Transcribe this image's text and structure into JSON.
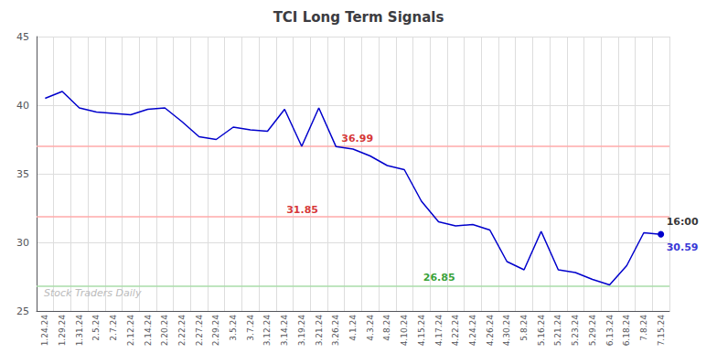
{
  "chart_data": {
    "type": "line",
    "title": "TCI Long Term Signals",
    "categories": [
      "1.24.24",
      "1.29.24",
      "1.31.24",
      "2.5.24",
      "2.7.24",
      "2.12.24",
      "2.14.24",
      "2.20.24",
      "2.22.24",
      "2.27.24",
      "2.29.24",
      "3.5.24",
      "3.7.24",
      "3.12.24",
      "3.14.24",
      "3.19.24",
      "3.21.24",
      "3.26.24",
      "4.1.24",
      "4.3.24",
      "4.8.24",
      "4.10.24",
      "4.15.24",
      "4.17.24",
      "4.22.24",
      "4.24.24",
      "4.26.24",
      "4.30.24",
      "5.8.24",
      "5.16.24",
      "5.21.24",
      "5.23.24",
      "5.29.24",
      "6.13.24",
      "6.18.24",
      "7.8.24",
      "7.15.24"
    ],
    "values": [
      40.5,
      41.0,
      39.8,
      39.5,
      39.4,
      39.3,
      39.7,
      39.8,
      38.8,
      37.7,
      37.5,
      38.4,
      38.2,
      38.1,
      39.7,
      37.0,
      39.8,
      36.99,
      36.8,
      36.3,
      35.6,
      35.3,
      33.0,
      31.5,
      31.2,
      31.3,
      30.9,
      28.6,
      28.0,
      30.8,
      28.0,
      27.8,
      27.3,
      26.9,
      28.3,
      30.7,
      30.59
    ],
    "color": "#0000cc",
    "ylim": [
      25,
      45
    ],
    "yticks": [
      25,
      30,
      35,
      40,
      45
    ],
    "grid": true,
    "hlines": [
      {
        "value": 37.0,
        "color": "#ffaaaa"
      },
      {
        "value": 31.85,
        "color": "#ffaaaa"
      },
      {
        "value": 26.85,
        "color": "#aaddaa"
      }
    ],
    "annotations": [
      {
        "text": "36.99",
        "x": "3.26.24",
        "y": 36.99,
        "color": "#cc0000"
      },
      {
        "text": "31.85",
        "x": "3.14.24",
        "y": 31.85,
        "color": "#cc0000"
      },
      {
        "text": "26.85",
        "x": "4.15.24",
        "y": 26.85,
        "color": "#008800"
      },
      {
        "text": "16:00",
        "x": "7.15.24",
        "y": 30.59,
        "color": "#000000"
      },
      {
        "text": "30.59",
        "x": "7.15.24",
        "y": 30.59,
        "color": "#0000cc"
      }
    ],
    "watermark": {
      "text": "Stock Traders Daily",
      "color": "#bbbbbb"
    }
  }
}
